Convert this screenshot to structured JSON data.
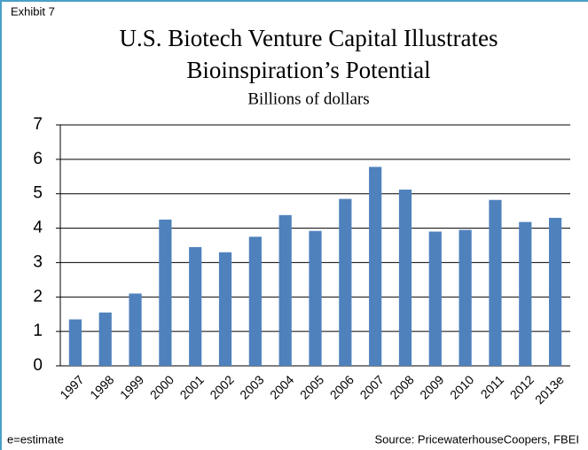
{
  "chart_data": {
    "type": "bar",
    "exhibit": "Exhibit 7",
    "title": [
      "U.S. Biotech Venture Capital Illustrates",
      "Bioinspiration’s Potential"
    ],
    "subtitle": "Billions of dollars",
    "categories": [
      "1997",
      "1998",
      "1999",
      "2000",
      "2001",
      "2002",
      "2003",
      "2004",
      "2005",
      "2006",
      "2007",
      "2008",
      "2009",
      "2010",
      "2011",
      "2012",
      "2013e"
    ],
    "values": [
      1.35,
      1.55,
      2.1,
      4.25,
      3.45,
      3.3,
      3.75,
      4.38,
      3.92,
      4.85,
      5.78,
      5.12,
      3.9,
      3.95,
      4.82,
      4.18,
      4.3
    ],
    "color": "#4f81bd",
    "ylim": [
      0,
      7
    ],
    "yticks": [
      0,
      1,
      2,
      3,
      4,
      5,
      6,
      7
    ],
    "grid": true,
    "footnote": "e=estimate",
    "source": "Source: PricewaterhouseCoopers, FBEI"
  }
}
